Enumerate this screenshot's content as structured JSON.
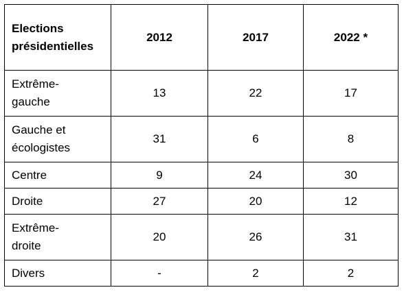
{
  "table": {
    "header": {
      "row_label": "Elections\nprésidentielles",
      "years": [
        "2012",
        "2017",
        "2022 *"
      ]
    },
    "rows": [
      {
        "label": "Extrême-\ngauche",
        "values": [
          "13",
          "22",
          "17"
        ]
      },
      {
        "label": "Gauche et\nécologistes",
        "values": [
          "31",
          "6",
          "8"
        ]
      },
      {
        "label": "Centre",
        "values": [
          "9",
          "24",
          "30"
        ]
      },
      {
        "label": "Droite",
        "values": [
          "27",
          "20",
          "12"
        ]
      },
      {
        "label": "Extrême-\ndroite",
        "values": [
          "20",
          "26",
          "31"
        ]
      },
      {
        "label": "Divers",
        "values": [
          "-",
          "2",
          "2"
        ]
      }
    ]
  }
}
